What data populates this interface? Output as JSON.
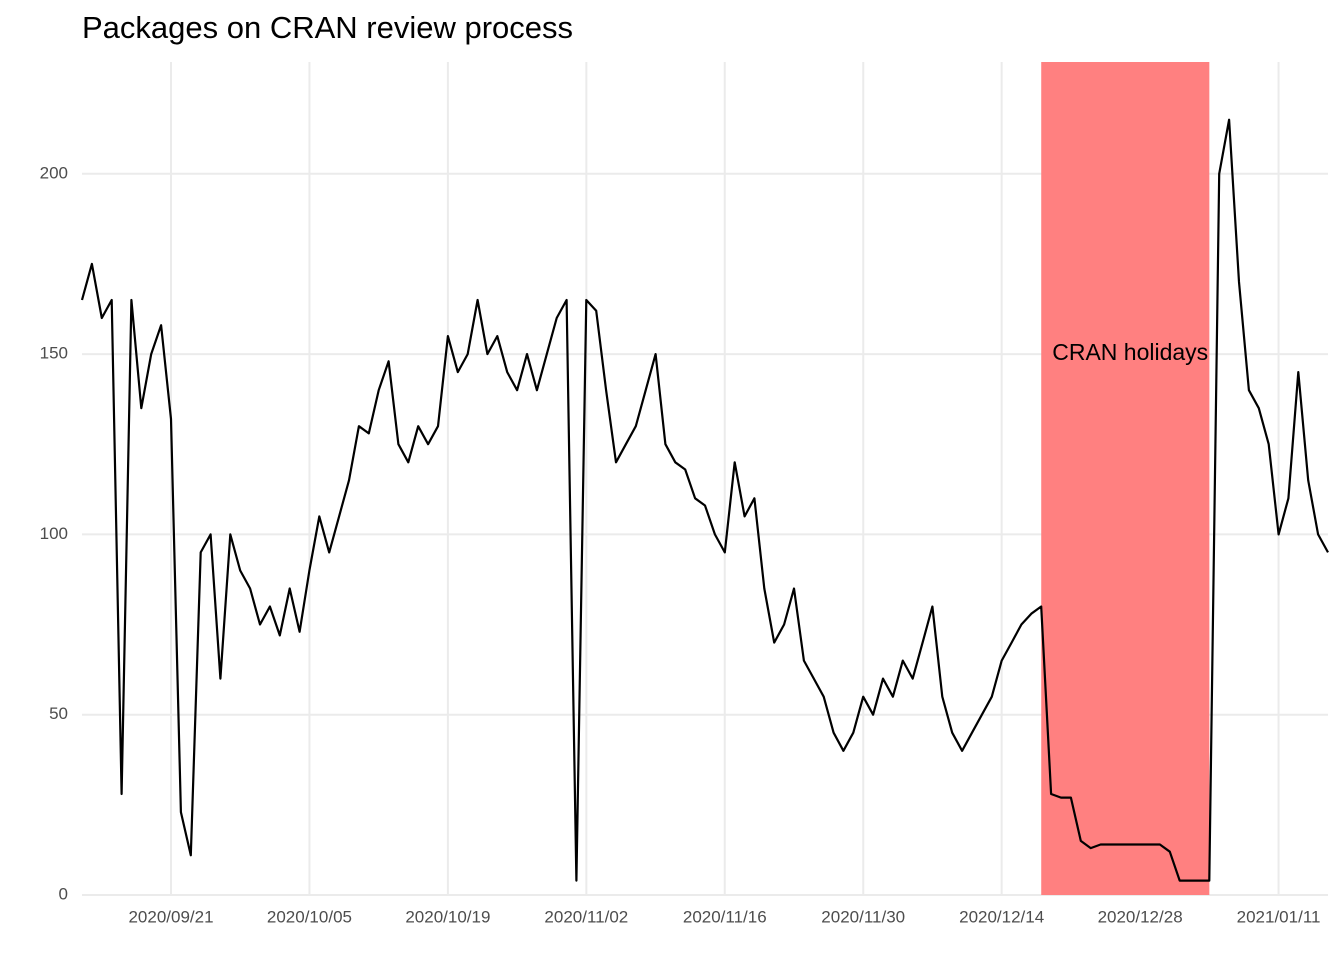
{
  "chart_data": {
    "type": "line",
    "title": "Packages on CRAN review process",
    "x": [
      "2020/09/12",
      "2020/09/13",
      "2020/09/14",
      "2020/09/15",
      "2020/09/16",
      "2020/09/17",
      "2020/09/18",
      "2020/09/19",
      "2020/09/20",
      "2020/09/21",
      "2020/09/22",
      "2020/09/23",
      "2020/09/24",
      "2020/09/25",
      "2020/09/26",
      "2020/09/27",
      "2020/09/28",
      "2020/09/29",
      "2020/09/30",
      "2020/10/01",
      "2020/10/02",
      "2020/10/03",
      "2020/10/04",
      "2020/10/05",
      "2020/10/06",
      "2020/10/07",
      "2020/10/08",
      "2020/10/09",
      "2020/10/10",
      "2020/10/11",
      "2020/10/12",
      "2020/10/13",
      "2020/10/14",
      "2020/10/15",
      "2020/10/16",
      "2020/10/17",
      "2020/10/18",
      "2020/10/19",
      "2020/10/20",
      "2020/10/21",
      "2020/10/22",
      "2020/10/23",
      "2020/10/24",
      "2020/10/25",
      "2020/10/26",
      "2020/10/27",
      "2020/10/28",
      "2020/10/29",
      "2020/10/30",
      "2020/10/31",
      "2020/11/01",
      "2020/11/02",
      "2020/11/03",
      "2020/11/04",
      "2020/11/05",
      "2020/11/06",
      "2020/11/07",
      "2020/11/08",
      "2020/11/09",
      "2020/11/10",
      "2020/11/11",
      "2020/11/12",
      "2020/11/13",
      "2020/11/14",
      "2020/11/15",
      "2020/11/16",
      "2020/11/17",
      "2020/11/18",
      "2020/11/19",
      "2020/11/20",
      "2020/11/21",
      "2020/11/22",
      "2020/11/23",
      "2020/11/24",
      "2020/11/25",
      "2020/11/26",
      "2020/11/27",
      "2020/11/28",
      "2020/11/29",
      "2020/11/30",
      "2020/12/01",
      "2020/12/02",
      "2020/12/03",
      "2020/12/04",
      "2020/12/05",
      "2020/12/06",
      "2020/12/07",
      "2020/12/08",
      "2020/12/09",
      "2020/12/10",
      "2020/12/11",
      "2020/12/12",
      "2020/12/13",
      "2020/12/14",
      "2020/12/15",
      "2020/12/16",
      "2020/12/17",
      "2020/12/18",
      "2020/12/19",
      "2020/12/20",
      "2020/12/21",
      "2020/12/22",
      "2020/12/23",
      "2020/12/24",
      "2020/12/25",
      "2020/12/26",
      "2020/12/27",
      "2020/12/28",
      "2020/12/29",
      "2020/12/30",
      "2020/12/31",
      "2021/01/01",
      "2021/01/02",
      "2021/01/03",
      "2021/01/04",
      "2021/01/05",
      "2021/01/06",
      "2021/01/07",
      "2021/01/08",
      "2021/01/09",
      "2021/01/10",
      "2021/01/11",
      "2021/01/12",
      "2021/01/13",
      "2021/01/14",
      "2021/01/15",
      "2021/01/16"
    ],
    "values": [
      165,
      175,
      160,
      165,
      28,
      165,
      135,
      150,
      158,
      132,
      23,
      11,
      95,
      100,
      60,
      100,
      90,
      85,
      75,
      80,
      72,
      85,
      73,
      90,
      105,
      95,
      105,
      115,
      130,
      128,
      140,
      148,
      125,
      120,
      130,
      125,
      130,
      155,
      145,
      150,
      165,
      150,
      155,
      145,
      140,
      150,
      140,
      150,
      160,
      165,
      4,
      165,
      162,
      140,
      120,
      125,
      130,
      140,
      150,
      125,
      120,
      118,
      110,
      108,
      100,
      95,
      120,
      105,
      110,
      85,
      70,
      75,
      85,
      65,
      60,
      55,
      45,
      40,
      45,
      55,
      50,
      60,
      55,
      65,
      60,
      70,
      80,
      55,
      45,
      40,
      45,
      50,
      55,
      65,
      70,
      75,
      78,
      80,
      28,
      27,
      27,
      15,
      13,
      14,
      14,
      14,
      14,
      14,
      14,
      14,
      12,
      4,
      4,
      4,
      4,
      200,
      215,
      170,
      140,
      135,
      125,
      100,
      110,
      145,
      115,
      100,
      95
    ],
    "color": "#000000",
    "xlim": [
      "2020/09/12",
      "2021/01/16"
    ],
    "xticks": [
      "2020/09/21",
      "2020/10/05",
      "2020/10/19",
      "2020/11/02",
      "2020/11/16",
      "2020/11/30",
      "2020/12/14",
      "2020/12/28",
      "2021/01/11"
    ],
    "ylim": [
      0,
      231
    ],
    "yticks": [
      0,
      50,
      100,
      150,
      200
    ],
    "grid": true,
    "highlight": {
      "label": "CRAN holidays",
      "start": "2020/12/18",
      "end": "2021/01/04",
      "color": "#ff8080",
      "label_x": "2020/12/27",
      "label_y": 150
    }
  }
}
